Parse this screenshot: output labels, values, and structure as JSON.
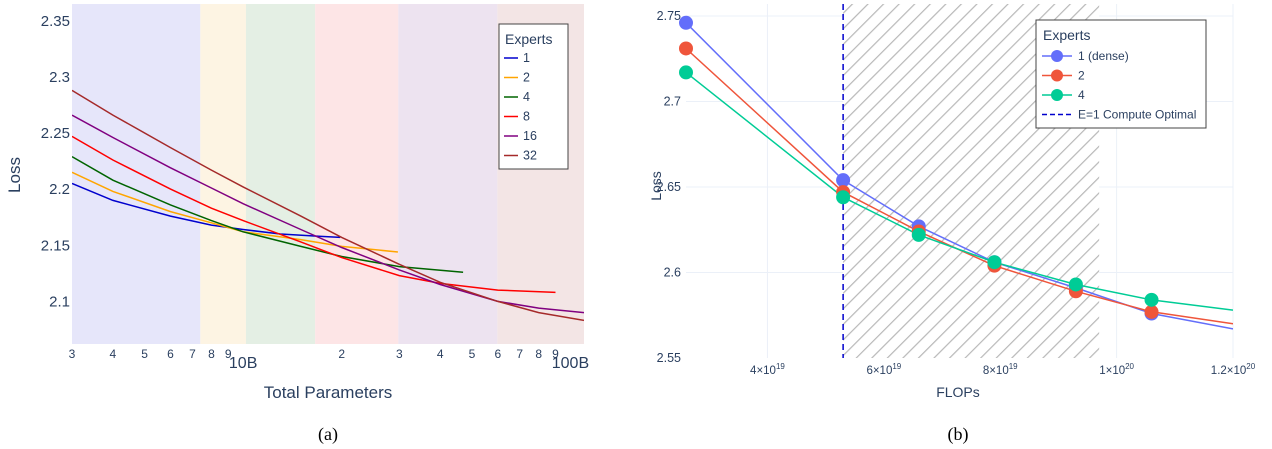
{
  "captions": [
    "(a)",
    "(b)"
  ],
  "chart_data": [
    {
      "type": "line",
      "xlabel": "Total Parameters",
      "ylabel": "Loss",
      "xscale": "log",
      "xlim": [
        3000000000,
        110000000000
      ],
      "ylim": [
        2.062,
        2.365
      ],
      "x_tick_labels": [
        {
          "value": 3000000000,
          "label": "3",
          "major": false
        },
        {
          "value": 4000000000,
          "label": "4",
          "major": false
        },
        {
          "value": 5000000000,
          "label": "5",
          "major": false
        },
        {
          "value": 6000000000,
          "label": "6",
          "major": false
        },
        {
          "value": 7000000000,
          "label": "7",
          "major": false
        },
        {
          "value": 8000000000,
          "label": "8",
          "major": false
        },
        {
          "value": 9000000000,
          "label": "9",
          "major": false
        },
        {
          "value": 10000000000,
          "label": "10B",
          "major": true
        },
        {
          "value": 20000000000,
          "label": "2",
          "major": false
        },
        {
          "value": 30000000000,
          "label": "3",
          "major": false
        },
        {
          "value": 40000000000,
          "label": "4",
          "major": false
        },
        {
          "value": 50000000000,
          "label": "5",
          "major": false
        },
        {
          "value": 60000000000,
          "label": "6",
          "major": false
        },
        {
          "value": 70000000000,
          "label": "7",
          "major": false
        },
        {
          "value": 80000000000,
          "label": "8",
          "major": false
        },
        {
          "value": 90000000000,
          "label": "9",
          "major": false
        },
        {
          "value": 100000000000,
          "label": "100B",
          "major": true
        }
      ],
      "y_tick_labels": [
        {
          "value": 2.1,
          "label": "2.1"
        },
        {
          "value": 2.15,
          "label": "2.15"
        },
        {
          "value": 2.2,
          "label": "2.2"
        },
        {
          "value": 2.25,
          "label": "2.25"
        },
        {
          "value": 2.3,
          "label": "2.3"
        },
        {
          "value": 2.35,
          "label": "2.35"
        }
      ],
      "grid": false,
      "legend_title": "Experts",
      "legend_placement": "top-right",
      "background_bands": [
        {
          "x0": 3000000000,
          "x1": 7400000000,
          "color": "#e6e6fa"
        },
        {
          "x0": 7400000000,
          "x1": 10200000000,
          "color": "#fdf4e3"
        },
        {
          "x0": 10200000000,
          "x1": 16600000000,
          "color": "#e4efe4"
        },
        {
          "x0": 16600000000,
          "x1": 29800000000,
          "color": "#fde5e6"
        },
        {
          "x0": 29800000000,
          "x1": 59800000000,
          "color": "#ede3f0"
        },
        {
          "x0": 59800000000,
          "x1": 110000000000,
          "color": "#f3e5e5"
        }
      ],
      "series": [
        {
          "name": "1",
          "color": "#0000cd",
          "points": [
            [
              3000000000,
              2.205
            ],
            [
              4000000000,
              2.19
            ],
            [
              6000000000,
              2.176
            ],
            [
              8000000000,
              2.168
            ],
            [
              10000000000,
              2.164
            ],
            [
              13000000000,
              2.16
            ],
            [
              17000000000,
              2.158
            ],
            [
              19800000000,
              2.157
            ]
          ]
        },
        {
          "name": "2",
          "color": "#ffa500",
          "points": [
            [
              3000000000,
              2.215
            ],
            [
              4000000000,
              2.198
            ],
            [
              6000000000,
              2.18
            ],
            [
              8000000000,
              2.17
            ],
            [
              10000000000,
              2.162
            ],
            [
              15000000000,
              2.155
            ],
            [
              20000000000,
              2.149
            ],
            [
              29700000000,
              2.144
            ]
          ]
        },
        {
          "name": "4",
          "color": "#006400",
          "points": [
            [
              3000000000,
              2.229
            ],
            [
              4000000000,
              2.208
            ],
            [
              6000000000,
              2.186
            ],
            [
              8000000000,
              2.172
            ],
            [
              10000000000,
              2.162
            ],
            [
              15000000000,
              2.149
            ],
            [
              20000000000,
              2.14
            ],
            [
              30000000000,
              2.131
            ],
            [
              47000000000,
              2.126
            ]
          ]
        },
        {
          "name": "8",
          "color": "#ff0000",
          "points": [
            [
              3000000000,
              2.247
            ],
            [
              4000000000,
              2.226
            ],
            [
              6000000000,
              2.2
            ],
            [
              8000000000,
              2.183
            ],
            [
              10000000000,
              2.172
            ],
            [
              15000000000,
              2.153
            ],
            [
              20000000000,
              2.139
            ],
            [
              30000000000,
              2.123
            ],
            [
              40000000000,
              2.116
            ],
            [
              60000000000,
              2.11
            ],
            [
              90000000000,
              2.108
            ]
          ]
        },
        {
          "name": "16",
          "color": "#800080",
          "points": [
            [
              3000000000,
              2.266
            ],
            [
              4000000000,
              2.246
            ],
            [
              6000000000,
              2.219
            ],
            [
              8000000000,
              2.201
            ],
            [
              10000000000,
              2.187
            ],
            [
              15000000000,
              2.164
            ],
            [
              20000000000,
              2.148
            ],
            [
              30000000000,
              2.128
            ],
            [
              40000000000,
              2.115
            ],
            [
              60000000000,
              2.1
            ],
            [
              80000000000,
              2.094
            ],
            [
              110000000000,
              2.09
            ]
          ]
        },
        {
          "name": "32",
          "color": "#a52a2a",
          "points": [
            [
              3000000000,
              2.288
            ],
            [
              4000000000,
              2.266
            ],
            [
              6000000000,
              2.237
            ],
            [
              8000000000,
              2.217
            ],
            [
              10000000000,
              2.202
            ],
            [
              15000000000,
              2.176
            ],
            [
              20000000000,
              2.157
            ],
            [
              30000000000,
              2.133
            ],
            [
              40000000000,
              2.117
            ],
            [
              60000000000,
              2.1
            ],
            [
              80000000000,
              2.09
            ],
            [
              110000000000,
              2.083
            ]
          ]
        }
      ]
    },
    {
      "type": "line",
      "xlabel": "FLOPs",
      "ylabel": "Loss",
      "xlim": [
        2.6e+19,
        1.2e+20
      ],
      "ylim": [
        2.55,
        2.757
      ],
      "x_tick_labels": [
        {
          "value": 4e+19,
          "mant": "4×10",
          "exp": "19"
        },
        {
          "value": 6e+19,
          "mant": "6×10",
          "exp": "19"
        },
        {
          "value": 8e+19,
          "mant": "8×10",
          "exp": "19"
        },
        {
          "value": 1e+20,
          "mant": "1×10",
          "exp": "20"
        },
        {
          "value": 1.2e+20,
          "mant": "1.2×10",
          "exp": "20"
        }
      ],
      "y_tick_labels": [
        {
          "value": 2.55,
          "label": "2.55"
        },
        {
          "value": 2.6,
          "label": "2.6"
        },
        {
          "value": 2.65,
          "label": "2.65"
        },
        {
          "value": 2.7,
          "label": "2.7"
        },
        {
          "value": 2.75,
          "label": "2.75"
        }
      ],
      "grid": true,
      "legend_title": "Experts",
      "legend_placement": "top-right",
      "hatched_region": {
        "x0": 5.3e+19,
        "x1": 9.7e+19
      },
      "compute_optimal_line": {
        "name": "E=1 Compute Optimal",
        "x": 5.3e+19,
        "color": "#0000cd"
      },
      "series": [
        {
          "name": "1 (dense)",
          "color": "#636efa",
          "points": [
            [
              2.6e+19,
              2.746
            ],
            [
              5.3e+19,
              2.654
            ],
            [
              6.6e+19,
              2.627
            ],
            [
              7.9e+19,
              2.606
            ],
            [
              9.3e+19,
              2.591
            ],
            [
              1.06e+20,
              2.576
            ],
            [
              1.2e+20,
              2.567
            ]
          ]
        },
        {
          "name": "2",
          "color": "#ef553b",
          "points": [
            [
              2.6e+19,
              2.731
            ],
            [
              5.3e+19,
              2.647
            ],
            [
              6.6e+19,
              2.624
            ],
            [
              7.9e+19,
              2.604
            ],
            [
              9.3e+19,
              2.589
            ],
            [
              1.06e+20,
              2.577
            ],
            [
              1.2e+20,
              2.57
            ]
          ]
        },
        {
          "name": "4",
          "color": "#00cc96",
          "points": [
            [
              2.6e+19,
              2.717
            ],
            [
              5.3e+19,
              2.644
            ],
            [
              6.6e+19,
              2.622
            ],
            [
              7.9e+19,
              2.606
            ],
            [
              9.3e+19,
              2.593
            ],
            [
              1.06e+20,
              2.584
            ],
            [
              1.2e+20,
              2.578
            ]
          ]
        }
      ],
      "markers_x": [
        2.6e+19,
        5.3e+19,
        6.6e+19,
        7.9e+19,
        9.3e+19,
        1.06e+20
      ]
    }
  ]
}
